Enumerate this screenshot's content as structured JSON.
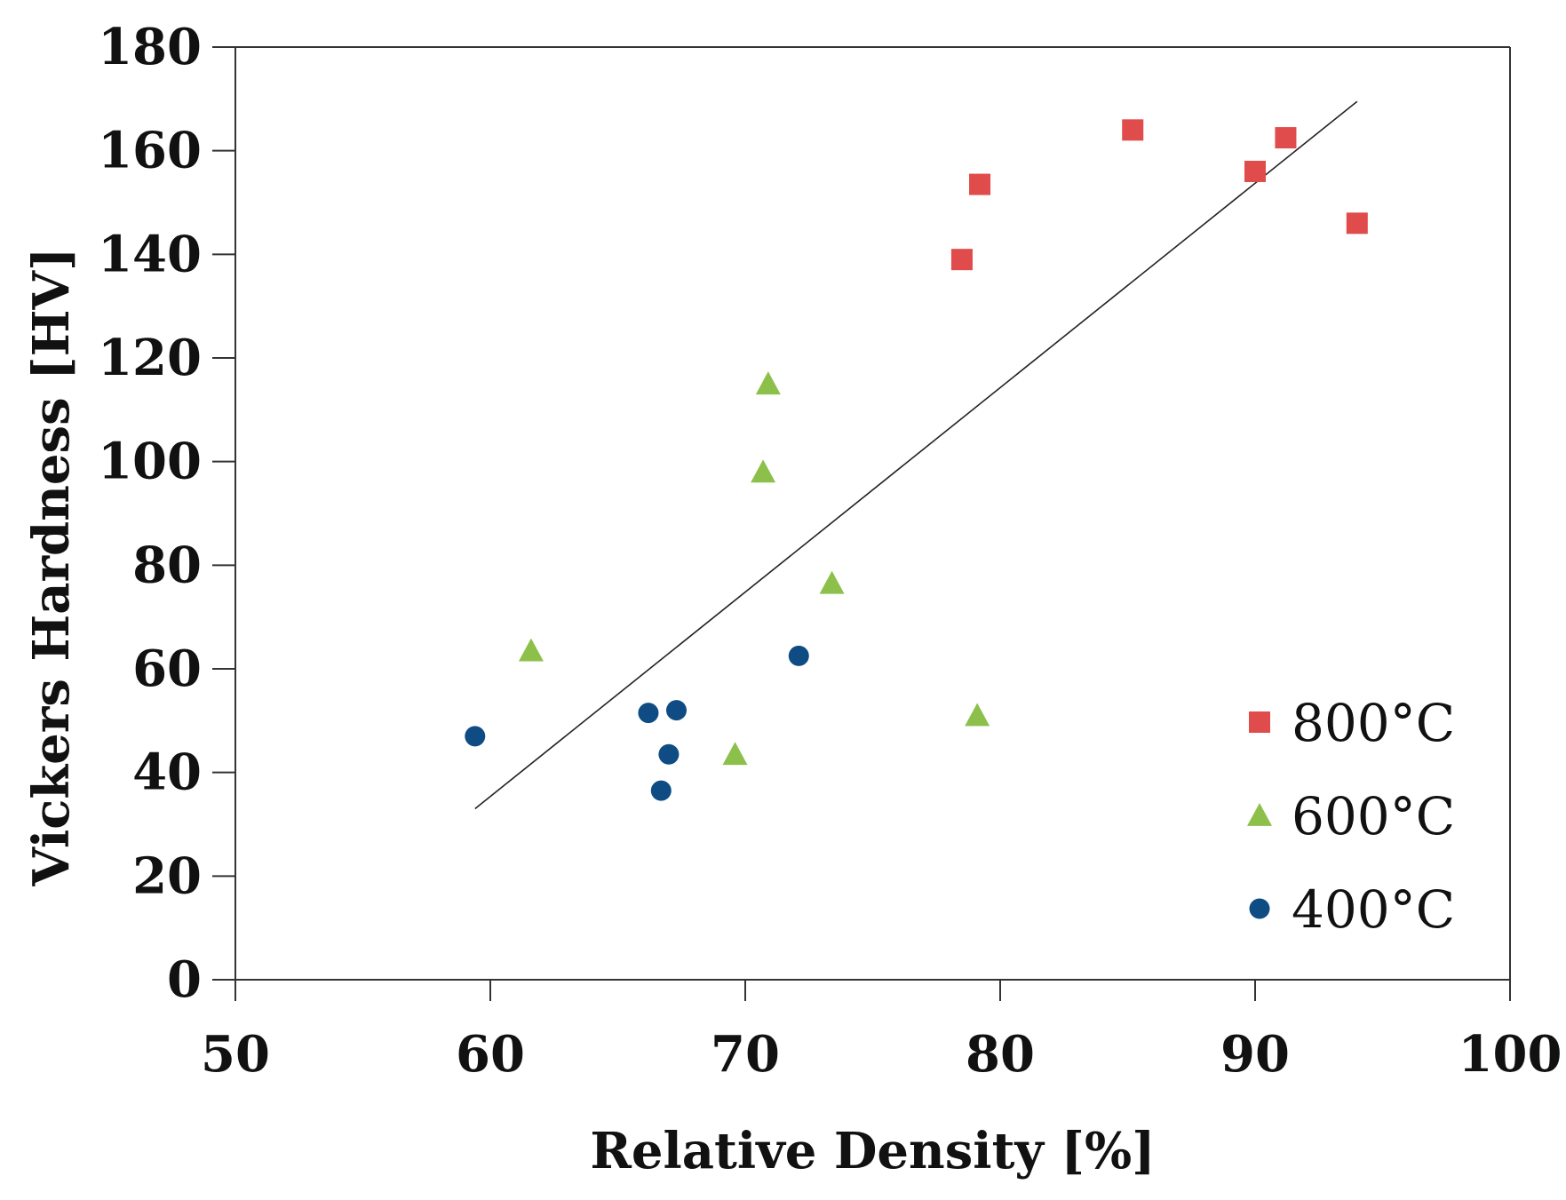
{
  "chart_data": {
    "type": "scatter",
    "title": "",
    "xlabel": "Relative Density [%]",
    "ylabel": "Vickers Hardness [HV]",
    "xlim": [
      50,
      100
    ],
    "ylim": [
      0,
      180
    ],
    "xticks": [
      50,
      60,
      70,
      80,
      90,
      100
    ],
    "yticks": [
      0,
      20,
      40,
      60,
      80,
      100,
      120,
      140,
      160,
      180
    ],
    "grid": false,
    "legend_position": "bottom-right",
    "series": [
      {
        "name": "800°C",
        "marker": "square",
        "color": "#E04B4B",
        "points": [
          [
            78.5,
            139
          ],
          [
            79.2,
            153.5
          ],
          [
            85.2,
            164
          ],
          [
            90,
            156
          ],
          [
            91.2,
            162.5
          ],
          [
            94,
            146
          ]
        ]
      },
      {
        "name": "600°C",
        "marker": "triangle",
        "color": "#8DC04A",
        "points": [
          [
            61.6,
            63.5
          ],
          [
            69.6,
            43.5
          ],
          [
            70.7,
            98
          ],
          [
            70.9,
            115
          ],
          [
            73.4,
            76.5
          ],
          [
            79.1,
            51
          ]
        ]
      },
      {
        "name": "400°C",
        "marker": "circle",
        "color": "#0F4C84",
        "points": [
          [
            59.4,
            47
          ],
          [
            66.2,
            51.5
          ],
          [
            66.7,
            36.5
          ],
          [
            67,
            43.5
          ],
          [
            67.3,
            52
          ],
          [
            72.1,
            62.5
          ]
        ]
      }
    ],
    "trendline": {
      "type": "linear",
      "color": "#222222",
      "points": [
        [
          59.4,
          33
        ],
        [
          94,
          169.5
        ]
      ]
    }
  }
}
